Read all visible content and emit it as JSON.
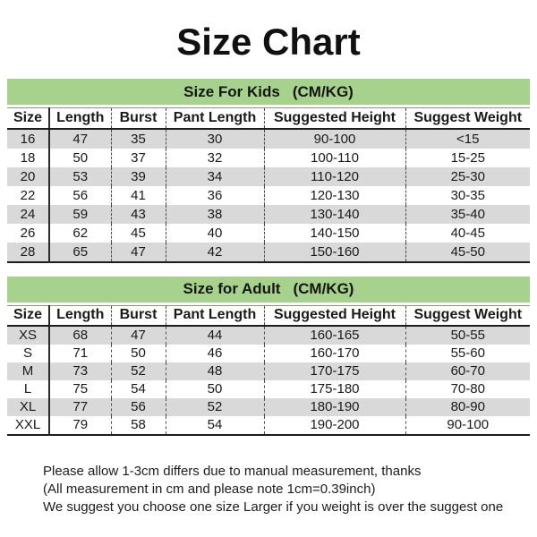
{
  "title": "Size Chart",
  "colors": {
    "section_header_green": "#a6d28e",
    "row_stripe_gray": "#d9d9d9",
    "text_black": "#1a1a1a"
  },
  "columns": [
    "Size",
    "Length",
    "Burst",
    "Pant Length",
    "Suggested Height",
    "Suggest Weight"
  ],
  "kids": {
    "heading": "Size For Kids",
    "unit": "(CM/KG)",
    "rows": [
      [
        "16",
        "47",
        "35",
        "30",
        "90-100",
        "<15"
      ],
      [
        "18",
        "50",
        "37",
        "32",
        "100-110",
        "15-25"
      ],
      [
        "20",
        "53",
        "39",
        "34",
        "110-120",
        "25-30"
      ],
      [
        "22",
        "56",
        "41",
        "36",
        "120-130",
        "30-35"
      ],
      [
        "24",
        "59",
        "43",
        "38",
        "130-140",
        "35-40"
      ],
      [
        "26",
        "62",
        "45",
        "40",
        "140-150",
        "40-45"
      ],
      [
        "28",
        "65",
        "47",
        "42",
        "150-160",
        "45-50"
      ]
    ]
  },
  "adult": {
    "heading": "Size for Adult",
    "unit": "(CM/KG)",
    "rows": [
      [
        "XS",
        "68",
        "47",
        "44",
        "160-165",
        "50-55"
      ],
      [
        "S",
        "71",
        "50",
        "46",
        "160-170",
        "55-60"
      ],
      [
        "M",
        "73",
        "52",
        "48",
        "170-175",
        "60-70"
      ],
      [
        "L",
        "75",
        "54",
        "50",
        "175-180",
        "70-80"
      ],
      [
        "XL",
        "77",
        "56",
        "52",
        "180-190",
        "80-90"
      ],
      [
        "XXL",
        "79",
        "58",
        "54",
        "190-200",
        "90-100"
      ]
    ]
  },
  "notes": [
    "Please allow 1-3cm differs due to manual measurement, thanks",
    "(All measurement in cm and please note 1cm=0.39inch)",
    "We suggest you choose one size Larger if you weight is over the suggest one"
  ]
}
